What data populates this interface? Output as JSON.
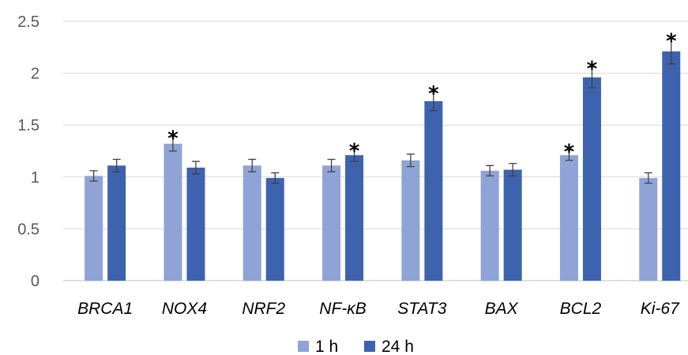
{
  "chart_data": {
    "type": "bar",
    "title": "",
    "xlabel": "",
    "ylabel": "",
    "ylim": [
      0,
      2.5
    ],
    "yticks": [
      "0",
      "0.5",
      "1",
      "1.5",
      "2",
      "2.5"
    ],
    "ytick_values": [
      0,
      0.5,
      1,
      1.5,
      2,
      2.5
    ],
    "grid": true,
    "legend_position": "bottom",
    "categories": [
      "BRCA1",
      "NOX4",
      "NRF2",
      "NF-κB",
      "STAT3",
      "BAX",
      "BCL2",
      "Ki-67"
    ],
    "series": [
      {
        "name": "1 h",
        "color": "#8fa3d6",
        "values": [
          1.01,
          1.32,
          1.11,
          1.11,
          1.16,
          1.06,
          1.21,
          0.99
        ],
        "errors": [
          0.05,
          0.07,
          0.06,
          0.06,
          0.06,
          0.05,
          0.05,
          0.05
        ],
        "significant": [
          false,
          true,
          false,
          false,
          false,
          false,
          true,
          false
        ]
      },
      {
        "name": "24 h",
        "color": "#3d63ae",
        "values": [
          1.11,
          1.09,
          0.99,
          1.21,
          1.73,
          1.07,
          1.96,
          2.21
        ],
        "errors": [
          0.06,
          0.06,
          0.05,
          0.06,
          0.09,
          0.06,
          0.1,
          0.12
        ],
        "significant": [
          false,
          false,
          false,
          true,
          true,
          false,
          true,
          true
        ]
      }
    ],
    "significance_marker": "*"
  }
}
